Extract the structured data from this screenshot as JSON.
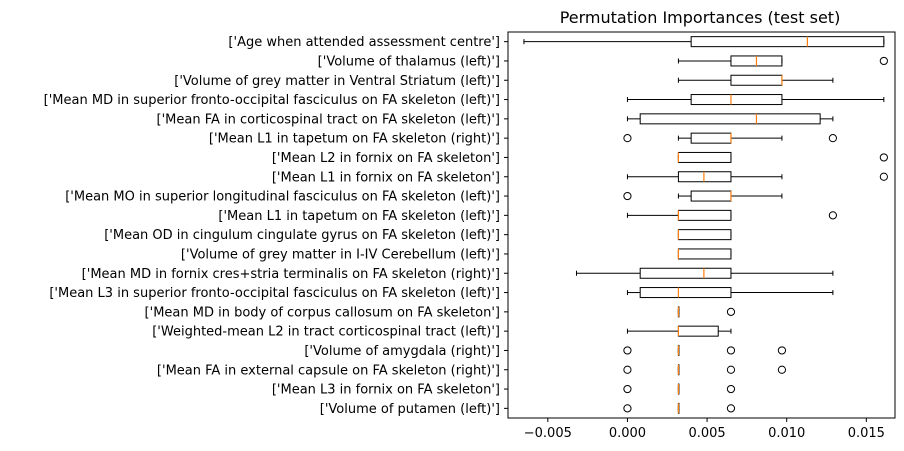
{
  "chart_data": {
    "type": "boxplot",
    "orientation": "horizontal",
    "title": "Permutation Importances (test set)",
    "xlabel": "",
    "ylabel": "",
    "xlim": [
      -0.0075,
      0.0168
    ],
    "xticks": [
      -0.005,
      0.0,
      0.005,
      0.01,
      0.015
    ],
    "xtick_labels": [
      "−0.005",
      "0.000",
      "0.005",
      "0.010",
      "0.015"
    ],
    "grid": false,
    "box_color": "#000000",
    "median_color": "#ff7f0e",
    "categories": [
      "['Age when attended assessment centre']",
      "['Volume of thalamus (left)']",
      "['Volume of grey matter in Ventral Striatum (left)']",
      "['Mean MD in superior fronto-occipital fasciculus on FA skeleton (left)']",
      "['Mean FA in corticospinal tract on FA skeleton (left)']",
      "['Mean L1 in tapetum on FA skeleton (right)']",
      "['Mean L2 in fornix on FA skeleton']",
      "['Mean L1 in fornix on FA skeleton']",
      "['Mean MO in superior longitudinal fasciculus on FA skeleton (left)']",
      "['Mean L1 in tapetum on FA skeleton (left)']",
      "['Mean OD in cingulum cingulate gyrus on FA skeleton (left)']",
      "['Volume of grey matter in I-IV Cerebellum (left)']",
      "['Mean MD in fornix cres+stria terminalis on FA skeleton (right)']",
      "['Mean L3 in superior fronto-occipital fasciculus on FA skeleton (left)']",
      "['Mean MD in body of corpus callosum on FA skeleton']",
      "['Weighted-mean L2 in tract corticospinal tract (left)']",
      "['Volume of amygdala (right)']",
      "['Mean FA in external capsule on FA skeleton (right)']",
      "['Mean L3 in fornix on FA skeleton']",
      "['Volume of putamen (left)']"
    ],
    "boxes": [
      {
        "whislo": -0.0065,
        "q1": 0.004,
        "med": 0.0113,
        "q3": 0.0161,
        "whishi": 0.0161,
        "fliers": []
      },
      {
        "whislo": 0.0032,
        "q1": 0.0065,
        "med": 0.0081,
        "q3": 0.0097,
        "whishi": 0.0097,
        "fliers": [
          0.0161
        ]
      },
      {
        "whislo": 0.0032,
        "q1": 0.0065,
        "med": 0.0097,
        "q3": 0.0097,
        "whishi": 0.0129,
        "fliers": []
      },
      {
        "whislo": 0.0,
        "q1": 0.004,
        "med": 0.0065,
        "q3": 0.0097,
        "whishi": 0.0161,
        "fliers": []
      },
      {
        "whislo": 0.0,
        "q1": 0.0008,
        "med": 0.0081,
        "q3": 0.0121,
        "whishi": 0.0129,
        "fliers": []
      },
      {
        "whislo": 0.0032,
        "q1": 0.004,
        "med": 0.0065,
        "q3": 0.0065,
        "whishi": 0.0097,
        "fliers": [
          0.0,
          0.0129
        ]
      },
      {
        "whislo": 0.0032,
        "q1": 0.0032,
        "med": 0.0032,
        "q3": 0.0065,
        "whishi": 0.0065,
        "fliers": [
          0.0161
        ]
      },
      {
        "whislo": 0.0,
        "q1": 0.0032,
        "med": 0.0048,
        "q3": 0.0065,
        "whishi": 0.0097,
        "fliers": [
          0.0161
        ]
      },
      {
        "whislo": 0.0032,
        "q1": 0.004,
        "med": 0.0065,
        "q3": 0.0065,
        "whishi": 0.0097,
        "fliers": [
          0.0
        ]
      },
      {
        "whislo": 0.0,
        "q1": 0.0032,
        "med": 0.0032,
        "q3": 0.0065,
        "whishi": 0.0065,
        "fliers": [
          0.0129
        ]
      },
      {
        "whislo": 0.0032,
        "q1": 0.0032,
        "med": 0.0032,
        "q3": 0.0065,
        "whishi": 0.0065,
        "fliers": []
      },
      {
        "whislo": 0.0032,
        "q1": 0.0032,
        "med": 0.0032,
        "q3": 0.0065,
        "whishi": 0.0065,
        "fliers": []
      },
      {
        "whislo": -0.0032,
        "q1": 0.0008,
        "med": 0.0048,
        "q3": 0.0065,
        "whishi": 0.0129,
        "fliers": []
      },
      {
        "whislo": 0.0,
        "q1": 0.0008,
        "med": 0.0032,
        "q3": 0.0065,
        "whishi": 0.0129,
        "fliers": []
      },
      {
        "whislo": 0.0032,
        "q1": 0.0032,
        "med": 0.0032,
        "q3": 0.0032,
        "whishi": 0.0032,
        "fliers": [
          0.0065
        ]
      },
      {
        "whislo": 0.0,
        "q1": 0.0032,
        "med": 0.0032,
        "q3": 0.0057,
        "whishi": 0.0065,
        "fliers": []
      },
      {
        "whislo": 0.0032,
        "q1": 0.0032,
        "med": 0.0032,
        "q3": 0.0032,
        "whishi": 0.0032,
        "fliers": [
          0.0,
          0.0065,
          0.0097
        ]
      },
      {
        "whislo": 0.0032,
        "q1": 0.0032,
        "med": 0.0032,
        "q3": 0.0032,
        "whishi": 0.0032,
        "fliers": [
          0.0,
          0.0065,
          0.0097
        ]
      },
      {
        "whislo": 0.0032,
        "q1": 0.0032,
        "med": 0.0032,
        "q3": 0.0032,
        "whishi": 0.0032,
        "fliers": [
          0.0,
          0.0065
        ]
      },
      {
        "whislo": 0.0032,
        "q1": 0.0032,
        "med": 0.0032,
        "q3": 0.0032,
        "whishi": 0.0032,
        "fliers": [
          0.0,
          0.0065
        ]
      }
    ]
  }
}
